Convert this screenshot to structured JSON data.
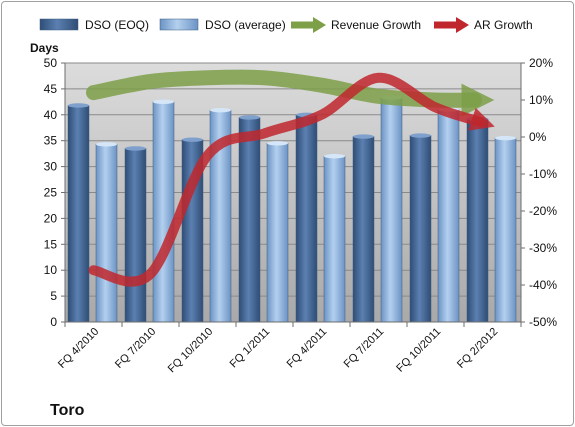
{
  "chart_data": {
    "type": "bar",
    "title": "Toro",
    "ylabel": "Days",
    "ylim": [
      0,
      50
    ],
    "y2lim": [
      -50,
      20
    ],
    "yticks": [
      "0",
      "5",
      "10",
      "15",
      "20",
      "25",
      "30",
      "35",
      "40",
      "45",
      "50"
    ],
    "y2ticks": [
      "-50%",
      "-40%",
      "-30%",
      "-20%",
      "-10%",
      "0%",
      "10%",
      "20%"
    ],
    "categories": [
      "FQ 4/2010",
      "FQ 7/2010",
      "FQ 10/2010",
      "FQ 1/2011",
      "FQ 4/2011",
      "FQ 7/2011",
      "FQ 10/2011",
      "FQ 2/2012"
    ],
    "series": [
      {
        "name": "DSO (EOQ)",
        "type": "bar",
        "axis": "left",
        "values": [
          41.8,
          33.5,
          35.2,
          39.5,
          40.0,
          35.8,
          36.0,
          39.2
        ]
      },
      {
        "name": "DSO (average)",
        "type": "bar",
        "axis": "left",
        "values": [
          34.3,
          42.5,
          40.9,
          34.5,
          32.0,
          43.3,
          41.0,
          35.5
        ]
      },
      {
        "name": "Revenue Growth",
        "type": "line",
        "axis": "right",
        "values": [
          12,
          15,
          16,
          16,
          14,
          11,
          10,
          10
        ]
      },
      {
        "name": "AR Growth",
        "type": "line",
        "axis": "right",
        "values": [
          -36,
          -37,
          -5,
          1,
          6,
          16,
          8,
          3
        ]
      }
    ],
    "legend_position": "top",
    "colors": {
      "dso_eoq": "#4a6d9c",
      "dso_avg": "#8fb3dd",
      "revenue_growth": "#7d9f48",
      "ar_growth": "#c0272d",
      "plot_background": "#bfbfbf"
    }
  }
}
